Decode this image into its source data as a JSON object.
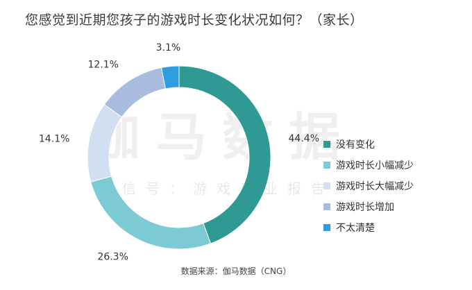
{
  "title": "您感觉到近期您孩子的游戏时长变化状况如何？（家长）",
  "source": "数据来源：伽马数据（CNG）",
  "watermark": {
    "main": "伽马数据",
    "sub": "微信号：游戏产业报告"
  },
  "chart_data": {
    "type": "pie",
    "variant": "donut",
    "title": "您感觉到近期您孩子的游戏时长变化状况如何？（家长）",
    "categories": [
      "没有变化",
      "游戏时长小幅减少",
      "游戏时长大幅减少",
      "游戏时长增加",
      "不太清楚"
    ],
    "values": [
      44.4,
      26.3,
      14.1,
      12.1,
      3.1
    ],
    "labels": [
      "44.4%",
      "26.3%",
      "14.1%",
      "12.1%",
      "3.1%"
    ],
    "colors": [
      "#2e9a93",
      "#7ccbd4",
      "#d2dff0",
      "#a9bcdf",
      "#2f9ee0"
    ],
    "legend_position": "right"
  }
}
